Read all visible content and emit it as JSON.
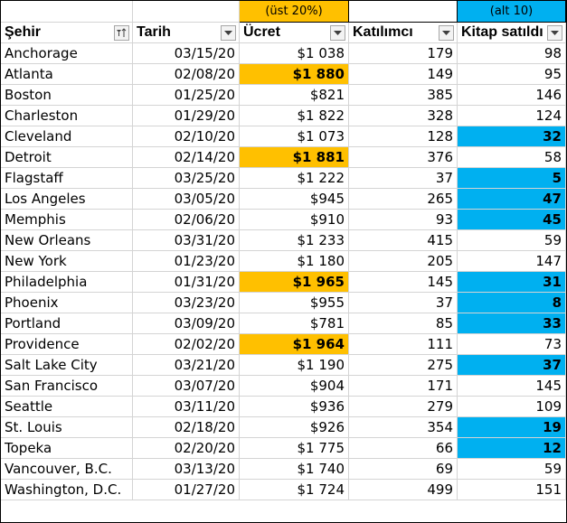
{
  "notes": {
    "fee_note": "(üst 20%)",
    "books_note": "(alt 10)"
  },
  "headers": {
    "city": "Şehir",
    "date": "Tarih",
    "fee": "Ücret",
    "attendees": "Katılımcı",
    "books": "Kitap satıldı"
  },
  "icons": {
    "city_filter": "sort-filter-icon",
    "other_filters": "dropdown-arrow-icon"
  },
  "colors": {
    "top_highlight": "#ffc000",
    "bottom_highlight": "#00b0f0"
  },
  "rows": [
    {
      "city": "Anchorage",
      "date": "03/15/20",
      "fee": "$1 038",
      "attendees": "179",
      "books": "98",
      "fee_top": false,
      "books_bottom": false
    },
    {
      "city": "Atlanta",
      "date": "02/08/20",
      "fee": "$1 880",
      "attendees": "149",
      "books": "95",
      "fee_top": true,
      "books_bottom": false
    },
    {
      "city": "Boston",
      "date": "01/25/20",
      "fee": "$821",
      "attendees": "385",
      "books": "146",
      "fee_top": false,
      "books_bottom": false
    },
    {
      "city": "Charleston",
      "date": "01/29/20",
      "fee": "$1 822",
      "attendees": "328",
      "books": "124",
      "fee_top": false,
      "books_bottom": false
    },
    {
      "city": "Cleveland",
      "date": "02/10/20",
      "fee": "$1 073",
      "attendees": "128",
      "books": "32",
      "fee_top": false,
      "books_bottom": true
    },
    {
      "city": "Detroit",
      "date": "02/14/20",
      "fee": "$1 881",
      "attendees": "376",
      "books": "58",
      "fee_top": true,
      "books_bottom": false
    },
    {
      "city": "Flagstaff",
      "date": "03/25/20",
      "fee": "$1 222",
      "attendees": "37",
      "books": "5",
      "fee_top": false,
      "books_bottom": true
    },
    {
      "city": "Los Angeles",
      "date": "03/05/20",
      "fee": "$945",
      "attendees": "265",
      "books": "47",
      "fee_top": false,
      "books_bottom": true
    },
    {
      "city": "Memphis",
      "date": "02/06/20",
      "fee": "$910",
      "attendees": "93",
      "books": "45",
      "fee_top": false,
      "books_bottom": true
    },
    {
      "city": "New Orleans",
      "date": "03/31/20",
      "fee": "$1 233",
      "attendees": "415",
      "books": "59",
      "fee_top": false,
      "books_bottom": false
    },
    {
      "city": "New York",
      "date": "01/23/20",
      "fee": "$1 180",
      "attendees": "205",
      "books": "147",
      "fee_top": false,
      "books_bottom": false
    },
    {
      "city": "Philadelphia",
      "date": "01/31/20",
      "fee": "$1 965",
      "attendees": "145",
      "books": "31",
      "fee_top": true,
      "books_bottom": true
    },
    {
      "city": "Phoenix",
      "date": "03/23/20",
      "fee": "$955",
      "attendees": "37",
      "books": "8",
      "fee_top": false,
      "books_bottom": true
    },
    {
      "city": "Portland",
      "date": "03/09/20",
      "fee": "$781",
      "attendees": "85",
      "books": "33",
      "fee_top": false,
      "books_bottom": true
    },
    {
      "city": "Providence",
      "date": "02/02/20",
      "fee": "$1 964",
      "attendees": "111",
      "books": "73",
      "fee_top": true,
      "books_bottom": false
    },
    {
      "city": "Salt Lake City",
      "date": "03/21/20",
      "fee": "$1 190",
      "attendees": "275",
      "books": "37",
      "fee_top": false,
      "books_bottom": true
    },
    {
      "city": "San Francisco",
      "date": "03/07/20",
      "fee": "$904",
      "attendees": "171",
      "books": "145",
      "fee_top": false,
      "books_bottom": false
    },
    {
      "city": "Seattle",
      "date": "03/11/20",
      "fee": "$936",
      "attendees": "279",
      "books": "109",
      "fee_top": false,
      "books_bottom": false
    },
    {
      "city": "St. Louis",
      "date": "02/18/20",
      "fee": "$926",
      "attendees": "354",
      "books": "19",
      "fee_top": false,
      "books_bottom": true
    },
    {
      "city": "Topeka",
      "date": "02/20/20",
      "fee": "$1 775",
      "attendees": "66",
      "books": "12",
      "fee_top": false,
      "books_bottom": true
    },
    {
      "city": "Vancouver, B.C.",
      "date": "03/13/20",
      "fee": "$1 740",
      "attendees": "69",
      "books": "59",
      "fee_top": false,
      "books_bottom": false
    },
    {
      "city": "Washington, D.C.",
      "date": "01/27/20",
      "fee": "$1 724",
      "attendees": "499",
      "books": "151",
      "fee_top": false,
      "books_bottom": false
    }
  ]
}
